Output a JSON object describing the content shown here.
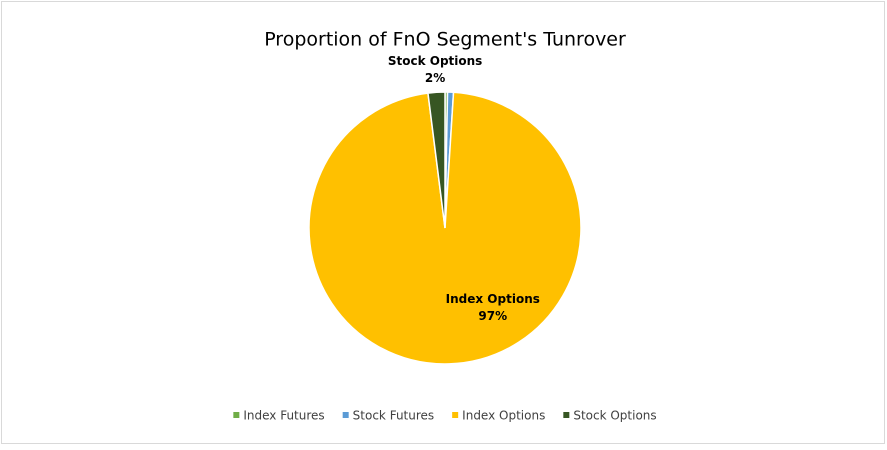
{
  "chart_data": {
    "type": "pie",
    "title": "Proportion of FnO Segment's Tunrover",
    "categories": [
      "Index Futures",
      "Stock Futures",
      "Index Options",
      "Stock Options"
    ],
    "values": [
      0.3,
      0.7,
      97,
      2
    ],
    "value_labels": [
      null,
      null,
      "97%",
      "2%"
    ],
    "colors": [
      "#70ad47",
      "#5b9bd5",
      "#ffc000",
      "#375623"
    ],
    "legend": "bottom"
  }
}
